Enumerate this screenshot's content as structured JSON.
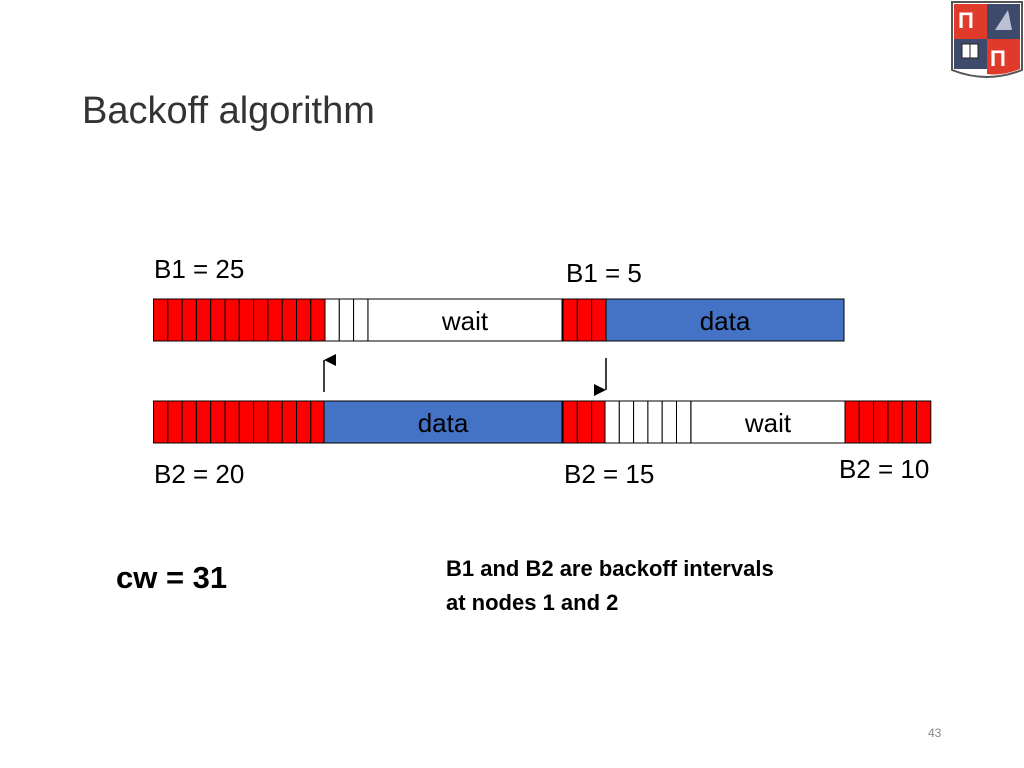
{
  "title": "Backoff algorithm",
  "node1": {
    "backoff_start_label": "B1 = 25",
    "backoff_resume_label": "B1 = 5",
    "wait_label": "wait",
    "data_label": "data",
    "timeline": [
      {
        "kind": "backoff",
        "slots": 12
      },
      {
        "kind": "frozen",
        "slots": 3
      },
      {
        "kind": "wait"
      },
      {
        "kind": "backoff",
        "slots": 3
      },
      {
        "kind": "data"
      }
    ]
  },
  "node2": {
    "backoff_start_label": "B2 = 20",
    "backoff_resume_label": "B2 = 15",
    "backoff_next_label": "B2 = 10",
    "wait_label": "wait",
    "data_label": "data",
    "timeline": [
      {
        "kind": "backoff",
        "slots": 12
      },
      {
        "kind": "data"
      },
      {
        "kind": "backoff",
        "slots": 3
      },
      {
        "kind": "frozen",
        "slots": 6
      },
      {
        "kind": "wait"
      },
      {
        "kind": "backoff",
        "slots": 6
      }
    ]
  },
  "cw_label": "cw = 31",
  "note_lines": [
    "B1 and B2 are backoff intervals",
    "at nodes 1 and 2"
  ],
  "page_number": "43",
  "colors": {
    "backoff": "#ff0000",
    "data": "#4472c4",
    "frozen": "#ffffff",
    "outline": "#000000"
  }
}
